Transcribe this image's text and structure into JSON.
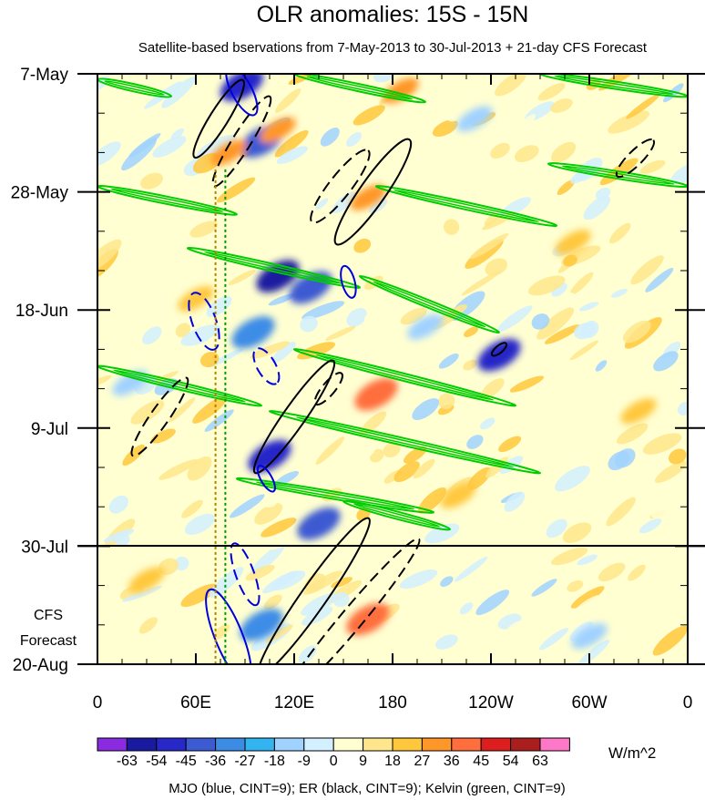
{
  "chart_data": {
    "type": "heatmap",
    "title": "OLR anomalies: 15S - 15N",
    "subtitle": "Satellite-based bservations from 7-May-2013 to 30-Jul-2013 + 21-day CFS Forecast",
    "x_tick_labels": [
      "0",
      "60E",
      "120E",
      "180",
      "120W",
      "60W",
      "0"
    ],
    "x_tick_values_lon": [
      0,
      60,
      120,
      180,
      240,
      300,
      360
    ],
    "y_tick_labels": [
      "7-May",
      "28-May",
      "18-Jun",
      "9-Jul",
      "30-Jul",
      "20-Aug"
    ],
    "y_tick_days": [
      0,
      21,
      42,
      63,
      84,
      105
    ],
    "observation_end_label": "30-Jul",
    "forecast_label_line1": "CFS",
    "forecast_label_line2": "Forecast",
    "colorbar": {
      "levels": [
        "-63",
        "-54",
        "-45",
        "-36",
        "-27",
        "-18",
        "-9",
        "0",
        "9",
        "18",
        "27",
        "36",
        "45",
        "54",
        "63"
      ],
      "colors": [
        "#8a2be2",
        "#1a1aa0",
        "#2828c8",
        "#3c5ad2",
        "#3c8ce6",
        "#32b4f0",
        "#a0d2ff",
        "#d2f0ff",
        "#ffffd2",
        "#ffe68c",
        "#ffc83c",
        "#ff9628",
        "#ff6e3c",
        "#dc1e1e",
        "#aa1e1e",
        "#ff78c8"
      ],
      "units": "W/m^2"
    },
    "footnote": "MJO (blue, CINT=9); ER (black, CINT=9); Kelvin (green, CINT=9)",
    "contour_colors": {
      "mjo": "#0000dd",
      "er": "#000000",
      "kelvin": "#00cc00"
    },
    "ref_lines_lon": [
      72,
      78
    ],
    "highlighted_anomalies": [
      {
        "lon": 88,
        "day": 2,
        "value": -54
      },
      {
        "lon": 100,
        "day": 12,
        "value": -45
      },
      {
        "lon": 110,
        "day": 36,
        "value": -63
      },
      {
        "lon": 130,
        "day": 38,
        "value": -45
      },
      {
        "lon": 95,
        "day": 46,
        "value": -36
      },
      {
        "lon": 105,
        "day": 68,
        "value": -54
      },
      {
        "lon": 135,
        "day": 80,
        "value": -45
      },
      {
        "lon": 245,
        "day": 50,
        "value": -54
      },
      {
        "lon": 100,
        "day": 98,
        "value": -36
      },
      {
        "lon": 80,
        "day": 14,
        "value": 27
      },
      {
        "lon": 165,
        "day": 22,
        "value": 27
      },
      {
        "lon": 170,
        "day": 57,
        "value": 36
      },
      {
        "lon": 185,
        "day": 3,
        "value": 27
      },
      {
        "lon": 165,
        "day": 97,
        "value": 36
      },
      {
        "lon": 110,
        "day": 10,
        "value": 27
      },
      {
        "lon": 60,
        "day": 40,
        "value": 18
      },
      {
        "lon": 30,
        "day": 90,
        "value": 18
      },
      {
        "lon": 290,
        "day": 30,
        "value": 18
      },
      {
        "lon": 330,
        "day": 60,
        "value": 18
      },
      {
        "lon": 220,
        "day": 75,
        "value": 18
      },
      {
        "lon": 300,
        "day": 100,
        "value": -18
      },
      {
        "lon": 230,
        "day": 8,
        "value": -18
      },
      {
        "lon": 20,
        "day": 55,
        "value": -18
      },
      {
        "lon": 200,
        "day": 45,
        "value": -18
      }
    ],
    "kelvin_lines": [
      {
        "lon1": 0,
        "day1": 1,
        "lon2": 45,
        "day2": 4
      },
      {
        "lon1": 120,
        "day1": 0,
        "lon2": 200,
        "day2": 5
      },
      {
        "lon1": 270,
        "day1": 0,
        "lon2": 360,
        "day2": 4
      },
      {
        "lon1": 0,
        "day1": 20,
        "lon2": 85,
        "day2": 25
      },
      {
        "lon1": 170,
        "day1": 20,
        "lon2": 280,
        "day2": 27
      },
      {
        "lon1": 275,
        "day1": 16,
        "lon2": 360,
        "day2": 20
      },
      {
        "lon1": 55,
        "day1": 31,
        "lon2": 160,
        "day2": 38
      },
      {
        "lon1": 160,
        "day1": 36,
        "lon2": 245,
        "day2": 46
      },
      {
        "lon1": 0,
        "day1": 52,
        "lon2": 100,
        "day2": 59
      },
      {
        "lon1": 120,
        "day1": 49,
        "lon2": 255,
        "day2": 59
      },
      {
        "lon1": 105,
        "day1": 60,
        "lon2": 270,
        "day2": 71
      },
      {
        "lon1": 85,
        "day1": 72,
        "lon2": 205,
        "day2": 78
      },
      {
        "lon1": 150,
        "day1": 76,
        "lon2": 215,
        "day2": 81
      }
    ],
    "er_ellipses": [
      {
        "lon": 74,
        "day": 8,
        "rx": 50,
        "ry": 10,
        "rot": -58,
        "dash": false
      },
      {
        "lon": 168,
        "day": 21,
        "rx": 70,
        "ry": 14,
        "rot": -55,
        "dash": false
      },
      {
        "lon": 148,
        "day": 20,
        "rx": 50,
        "ry": 12,
        "rot": -52,
        "dash": true
      },
      {
        "lon": 88,
        "day": 12,
        "rx": 58,
        "ry": 10,
        "rot": -58,
        "dash": true
      },
      {
        "lon": 328,
        "day": 15,
        "rx": 28,
        "ry": 8,
        "rot": -45,
        "dash": true
      },
      {
        "lon": 38,
        "day": 61,
        "rx": 52,
        "ry": 10,
        "rot": -55,
        "dash": true
      },
      {
        "lon": 120,
        "day": 61,
        "rx": 75,
        "ry": 12,
        "rot": -55,
        "dash": false
      },
      {
        "lon": 141,
        "day": 56,
        "rx": 22,
        "ry": 7,
        "rot": -50,
        "dash": true
      },
      {
        "lon": 132,
        "day": 93,
        "rx": 105,
        "ry": 14,
        "rot": -55,
        "dash": false
      },
      {
        "lon": 155,
        "day": 97,
        "rx": 115,
        "ry": 12,
        "rot": -50,
        "dash": true
      },
      {
        "lon": 245,
        "day": 49,
        "rx": 10,
        "ry": 4,
        "rot": -40,
        "dash": false
      }
    ],
    "mjo_ellipses": [
      {
        "lon": 88,
        "day": 3,
        "rx": 30,
        "ry": 11,
        "rot": 62,
        "dash": false
      },
      {
        "lon": 65,
        "day": 44,
        "rx": 33,
        "ry": 13,
        "rot": 70,
        "dash": true
      },
      {
        "lon": 103,
        "day": 52,
        "rx": 22,
        "ry": 10,
        "rot": 60,
        "dash": true
      },
      {
        "lon": 153,
        "day": 37,
        "rx": 18,
        "ry": 7,
        "rot": 75,
        "dash": false
      },
      {
        "lon": 103,
        "day": 72,
        "rx": 16,
        "ry": 6,
        "rot": 60,
        "dash": false
      },
      {
        "lon": 90,
        "day": 89,
        "rx": 36,
        "ry": 10,
        "rot": 70,
        "dash": true
      },
      {
        "lon": 80,
        "day": 100,
        "rx": 55,
        "ry": 15,
        "rot": 68,
        "dash": false
      }
    ]
  }
}
